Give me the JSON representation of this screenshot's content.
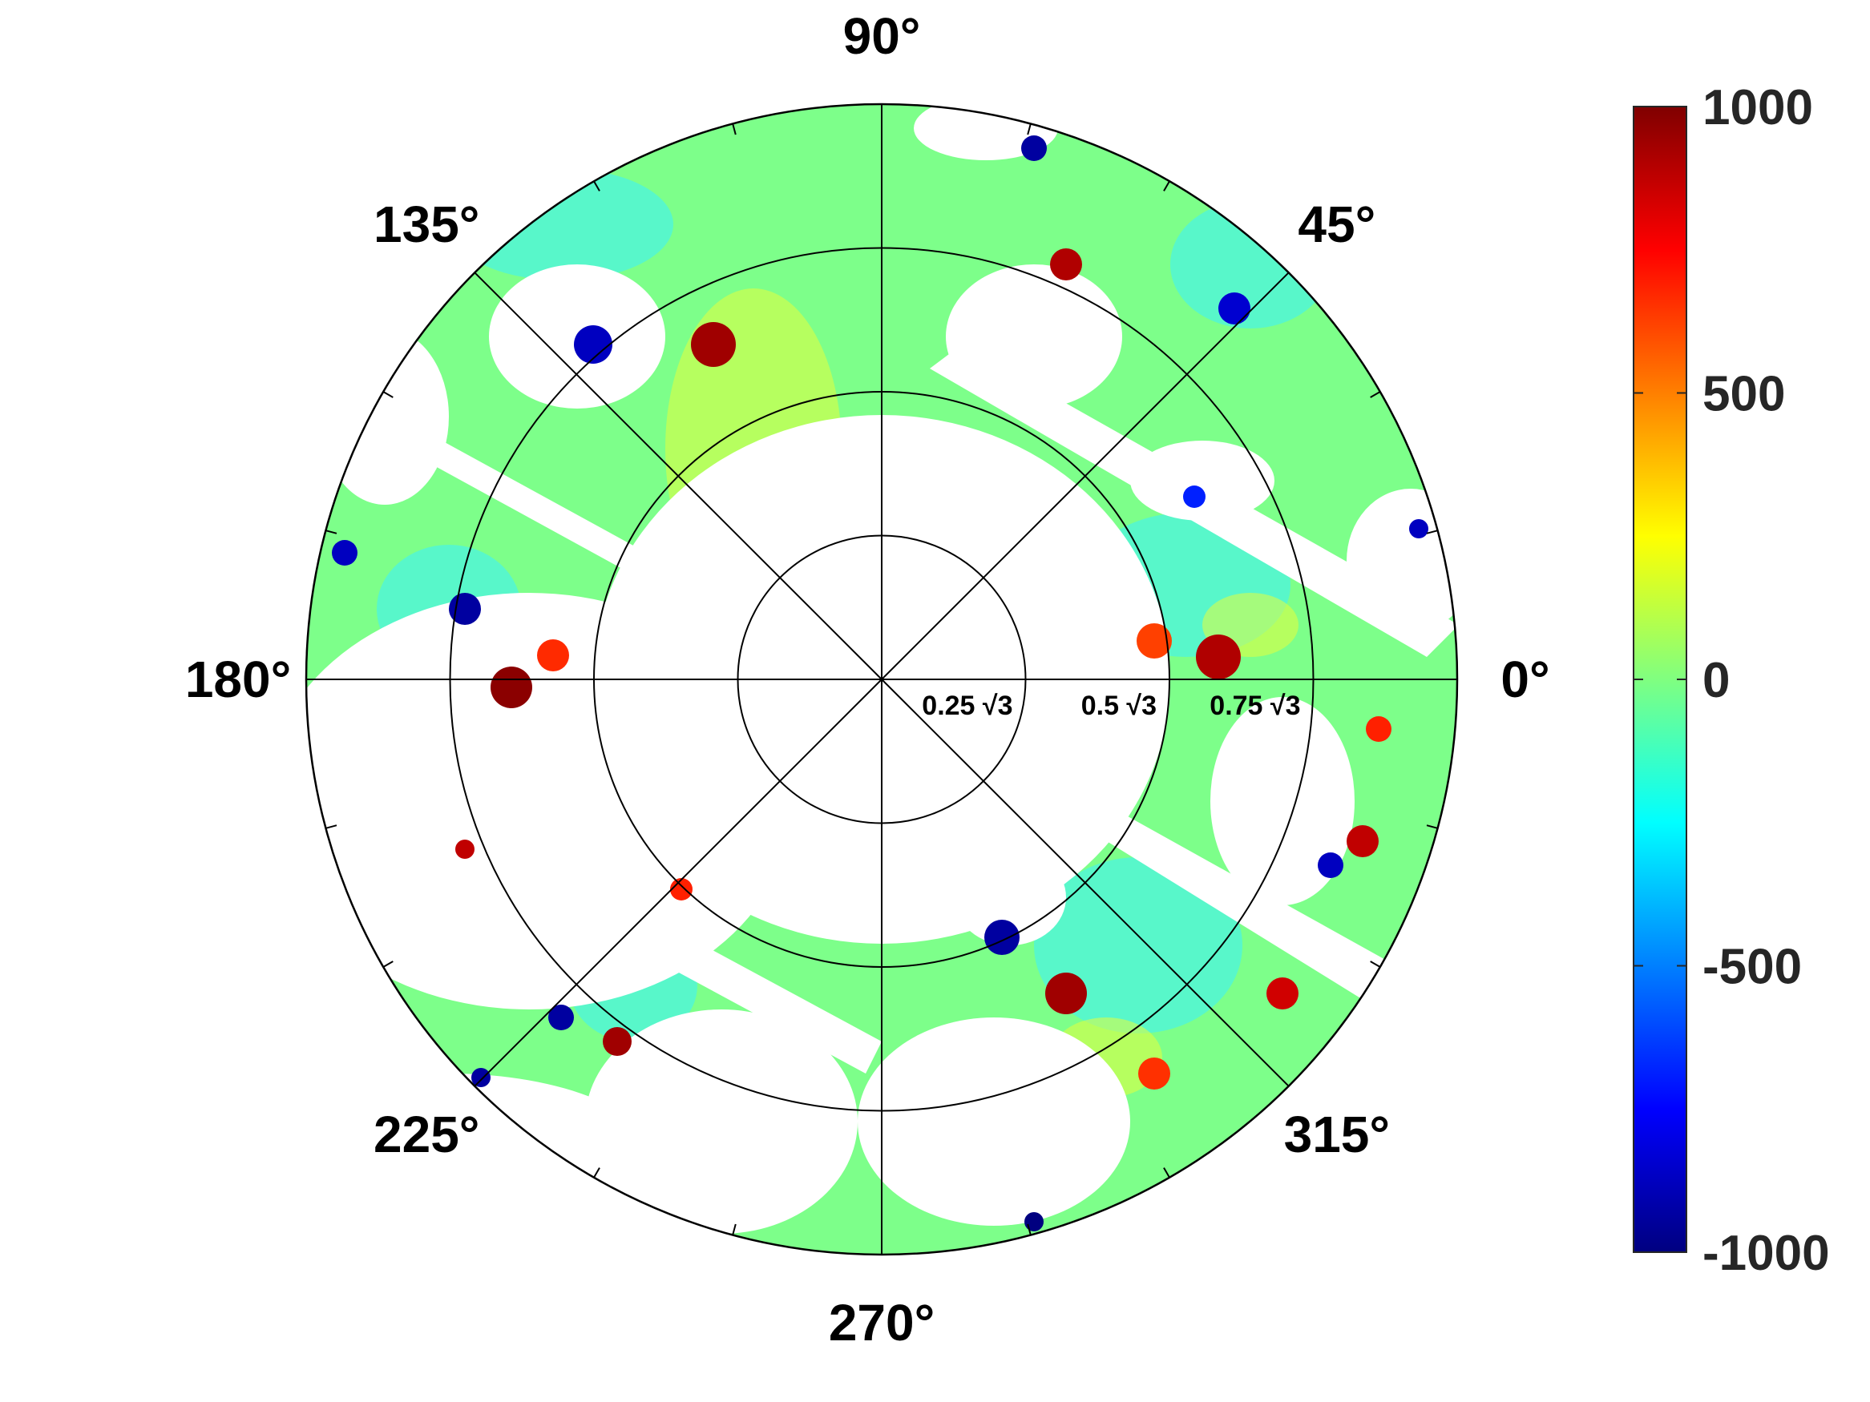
{
  "chart_data": {
    "type": "heatmap",
    "projection": "polar",
    "title": "",
    "angular_ticks": [
      "0°",
      "45°",
      "90°",
      "135°",
      "180°",
      "225°",
      "270°",
      "315°"
    ],
    "radial_ticks": [
      {
        "r": 0.25,
        "label": "0.25 √3"
      },
      {
        "r": 0.5,
        "label": "0.5 √3"
      },
      {
        "r": 0.75,
        "label": "0.75 √3"
      }
    ],
    "radial_max": 1.0,
    "colorbar": {
      "colormap": "jet",
      "range": [
        -1000,
        1000
      ],
      "ticks": [
        {
          "value": 1000,
          "label": "1000"
        },
        {
          "value": 500,
          "label": "500"
        },
        {
          "value": 0,
          "label": "0"
        },
        {
          "value": -500,
          "label": "-500"
        },
        {
          "value": -1000,
          "label": "-1000"
        }
      ]
    },
    "grid": true,
    "undefined_region_color": "#ffffff"
  },
  "colors": {
    "background": "#ffffff",
    "grid": "#000000",
    "text": "#000000",
    "colorbar_text": "#262626"
  }
}
